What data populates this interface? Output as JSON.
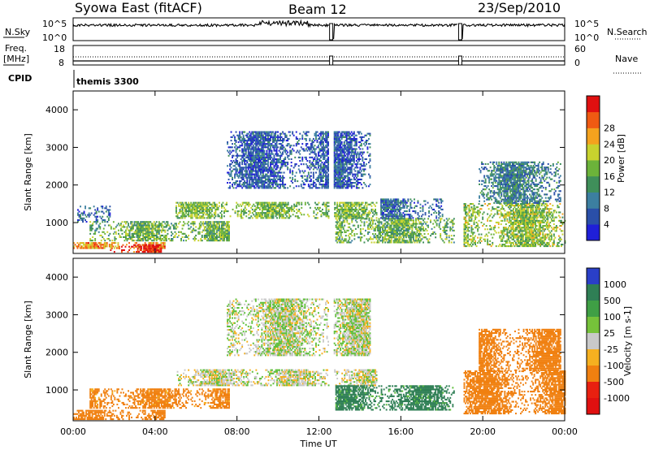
{
  "header": {
    "title": "Syowa East (fitACF)",
    "beam": "Beam 12",
    "date": "23/Sep/2010"
  },
  "top_panels": {
    "nsky_label": "N.Sky",
    "nsearch_label": "N.Search",
    "noise_ticks": [
      "10^5",
      "10^0"
    ],
    "freq_label": "Freq.",
    "freq_unit": "[MHz]",
    "freq_ticks": [
      "18",
      "8"
    ],
    "nave_label": "Nave",
    "nave_ticks": [
      "60",
      "0"
    ],
    "cpid_label": "CPID",
    "cpid_value": "themis 3300"
  },
  "chart_data": [
    {
      "type": "heatmap",
      "name": "power",
      "ylabel": "Slant Range [km]",
      "xlabel": "Time UT",
      "ylim": [
        180,
        4500
      ],
      "xlim": [
        0,
        24
      ],
      "yticks": [
        1000,
        2000,
        3000,
        4000
      ],
      "xtick_labels": [
        "00:00",
        "04:00",
        "08:00",
        "12:00",
        "16:00",
        "20:00",
        "00:00"
      ],
      "colorbar_label": "Power [dB]",
      "colorbar_ticks": [
        "4",
        "8",
        "12",
        "16",
        "20",
        "24",
        "28"
      ],
      "colorbar_range": [
        0,
        30
      ],
      "data_gaps_ut": [
        12.6,
        18.9
      ],
      "echo_regions": [
        {
          "t0": 0.0,
          "t1": 4.5,
          "r0": 300,
          "r1": 450,
          "value": 22
        },
        {
          "t0": 1.8,
          "t1": 4.3,
          "r0": 200,
          "r1": 420,
          "value": 28
        },
        {
          "t0": 0.8,
          "t1": 7.6,
          "r0": 500,
          "r1": 1000,
          "value": 14
        },
        {
          "t0": 0.2,
          "t1": 1.8,
          "r0": 1000,
          "r1": 1450,
          "value": 7
        },
        {
          "t0": 5.0,
          "t1": 14.8,
          "r0": 1100,
          "r1": 1550,
          "value": 15
        },
        {
          "t0": 7.5,
          "t1": 14.5,
          "r0": 1900,
          "r1": 3400,
          "value": 6
        },
        {
          "t0": 12.8,
          "t1": 18.6,
          "r0": 450,
          "r1": 1100,
          "value": 14
        },
        {
          "t0": 15.0,
          "t1": 18.0,
          "r0": 1100,
          "r1": 1600,
          "value": 7
        },
        {
          "t0": 19.0,
          "t1": 24.0,
          "r0": 350,
          "r1": 1500,
          "value": 16
        },
        {
          "t0": 19.8,
          "t1": 23.8,
          "r0": 1500,
          "r1": 2600,
          "value": 9
        }
      ]
    },
    {
      "type": "heatmap",
      "name": "velocity",
      "ylabel": "Slant Range [km]",
      "xlabel": "Time UT",
      "ylim": [
        180,
        4500
      ],
      "xlim": [
        0,
        24
      ],
      "yticks": [
        1000,
        2000,
        3000,
        4000
      ],
      "xtick_labels": [
        "00:00",
        "04:00",
        "08:00",
        "12:00",
        "16:00",
        "20:00",
        "00:00"
      ],
      "colorbar_label": "Velocity [m s-1]",
      "colorbar_ticks": [
        "1000",
        "500",
        "100",
        "25",
        "-25",
        "-100",
        "-500",
        "-1000"
      ],
      "data_gaps_ut": [
        12.6,
        18.9
      ],
      "echo_regions": [
        {
          "t0": 0.0,
          "t1": 4.5,
          "r0": 200,
          "r1": 450,
          "value": -200
        },
        {
          "t0": 0.8,
          "t1": 7.6,
          "r0": 500,
          "r1": 1000,
          "value": -150
        },
        {
          "t0": 5.0,
          "t1": 14.8,
          "r0": 1100,
          "r1": 1550,
          "value": 0
        },
        {
          "t0": 7.5,
          "t1": 14.5,
          "r0": 1900,
          "r1": 3400,
          "value": 10
        },
        {
          "t0": 12.8,
          "t1": 18.6,
          "r0": 450,
          "r1": 1100,
          "value": 150
        },
        {
          "t0": 19.0,
          "t1": 24.0,
          "r0": 350,
          "r1": 1500,
          "value": -300
        },
        {
          "t0": 19.8,
          "t1": 23.8,
          "r0": 1500,
          "r1": 2600,
          "value": -200
        }
      ]
    }
  ]
}
